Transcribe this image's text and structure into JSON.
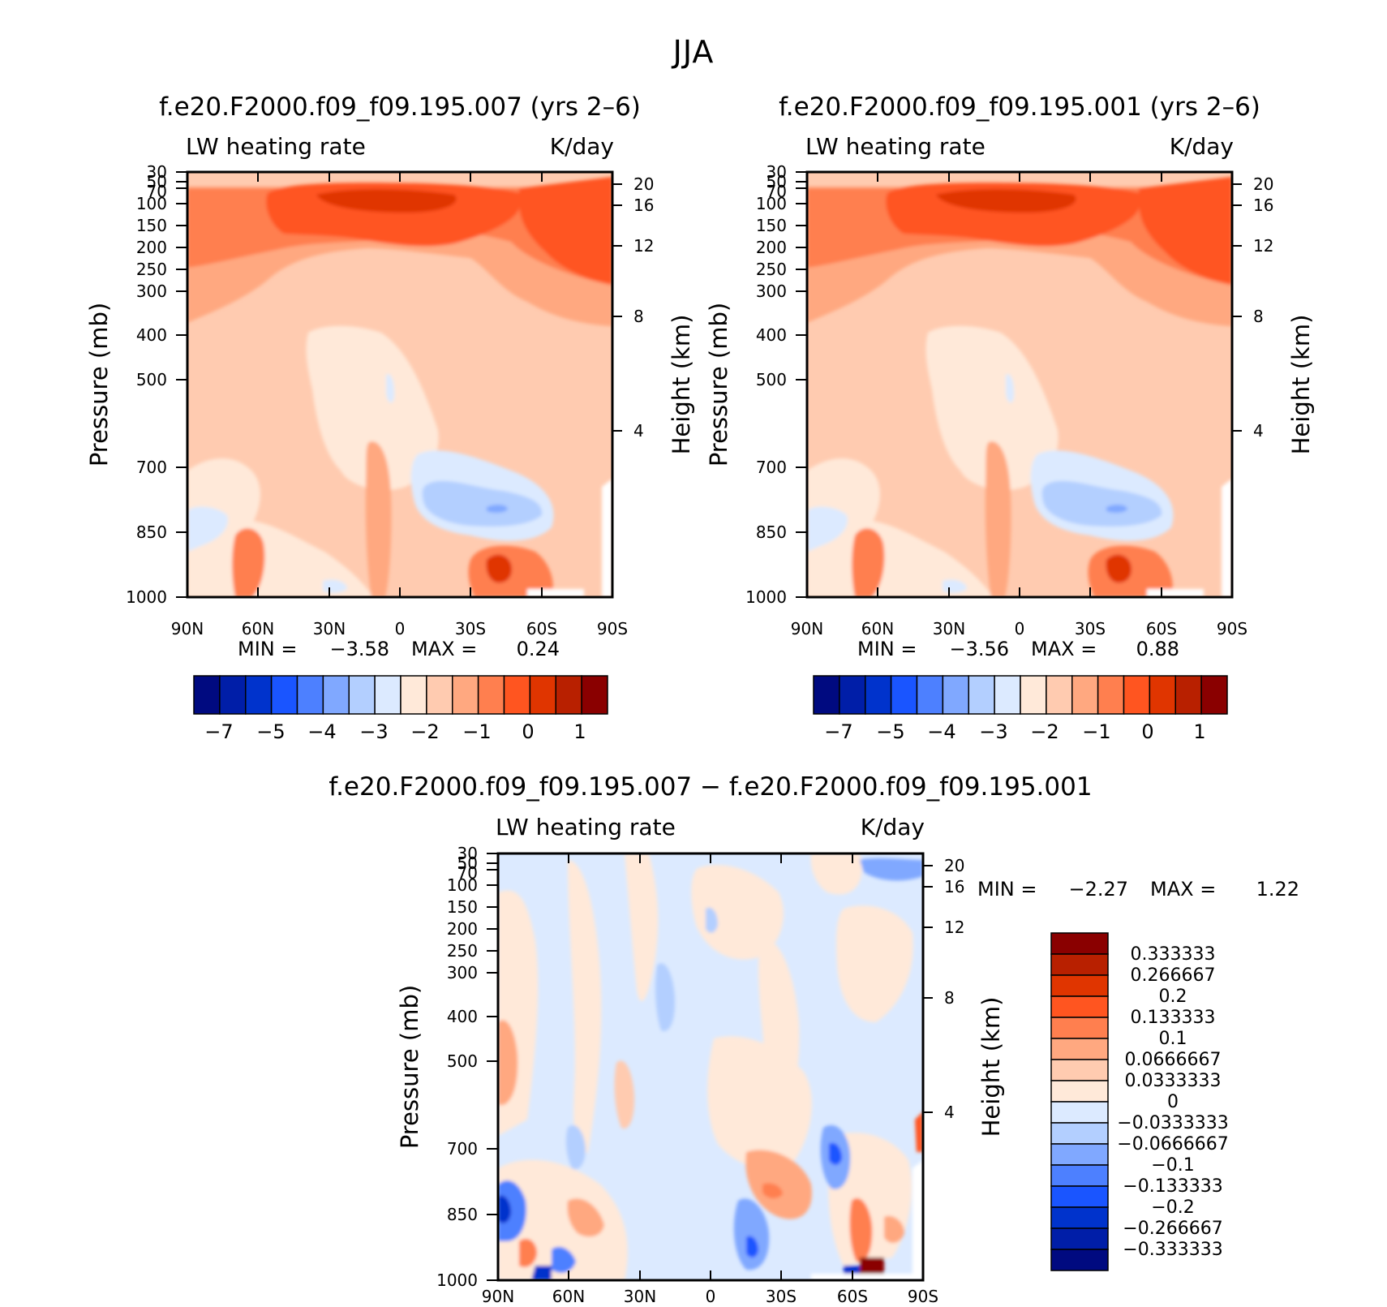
{
  "page_title": "JJA",
  "colors": {
    "colormap": [
      "#000a80",
      "#001ea8",
      "#0033cc",
      "#1a55ff",
      "#4d80ff",
      "#80a8ff",
      "#b3cfff",
      "#dceaff",
      "#ffe9d9",
      "#ffcbb0",
      "#ffa880",
      "#ff7f4f",
      "#ff5520",
      "#e03500",
      "#b82000",
      "#8a0000"
    ]
  },
  "chart_data": [
    {
      "type": "heatmap",
      "panel": "top-left",
      "title": "f.e20.F2000.f09_f09.195.007 (yrs 2–6)",
      "left_label": "LW heating rate",
      "right_label": "K/day",
      "xlabel": "",
      "ylabel": "Pressure (mb)",
      "y2label": "Height (km)",
      "x_ticks": [
        "90N",
        "60N",
        "30N",
        "0",
        "30S",
        "60S",
        "90S"
      ],
      "y_ticks": [
        "30",
        "50",
        "70",
        "100",
        "150",
        "200",
        "250",
        "300",
        "400",
        "500",
        "700",
        "850",
        "1000"
      ],
      "y2_ticks": [
        "20",
        "16",
        "12",
        "8",
        "4"
      ],
      "min_label": "MIN =",
      "min_value": "−3.58",
      "max_label": "MAX =",
      "max_value": "0.24",
      "colorbar_labels": [
        "−7",
        "−5",
        "−4",
        "−3",
        "−2",
        "−1",
        "0",
        "1"
      ]
    },
    {
      "type": "heatmap",
      "panel": "top-right",
      "title": "f.e20.F2000.f09_f09.195.001 (yrs 2–6)",
      "left_label": "LW heating rate",
      "right_label": "K/day",
      "xlabel": "",
      "ylabel": "Pressure (mb)",
      "y2label": "Height (km)",
      "x_ticks": [
        "90N",
        "60N",
        "30N",
        "0",
        "30S",
        "60S",
        "90S"
      ],
      "y_ticks": [
        "30",
        "50",
        "70",
        "100",
        "150",
        "200",
        "250",
        "300",
        "400",
        "500",
        "700",
        "850",
        "1000"
      ],
      "y2_ticks": [
        "20",
        "16",
        "12",
        "8",
        "4"
      ],
      "min_label": "MIN =",
      "min_value": "−3.56",
      "max_label": "MAX =",
      "max_value": "0.88",
      "colorbar_labels": [
        "−7",
        "−5",
        "−4",
        "−3",
        "−2",
        "−1",
        "0",
        "1"
      ]
    },
    {
      "type": "heatmap",
      "panel": "bottom",
      "title": "f.e20.F2000.f09_f09.195.007 − f.e20.F2000.f09_f09.195.001",
      "left_label": "LW heating rate",
      "right_label": "K/day",
      "xlabel": "",
      "ylabel": "Pressure (mb)",
      "y2label": "Height (km)",
      "x_ticks": [
        "90N",
        "60N",
        "30N",
        "0",
        "30S",
        "60S",
        "90S"
      ],
      "y_ticks": [
        "30",
        "50",
        "70",
        "100",
        "150",
        "200",
        "250",
        "300",
        "400",
        "500",
        "700",
        "850",
        "1000"
      ],
      "y2_ticks": [
        "20",
        "16",
        "12",
        "8",
        "4"
      ],
      "min_label": "MIN =",
      "min_value": "−2.27",
      "max_label": "MAX =",
      "max_value": "1.22",
      "colorbar_labels": [
        "0.333333",
        "0.266667",
        "0.2",
        "0.133333",
        "0.1",
        "0.0666667",
        "0.0333333",
        "0",
        "−0.0333333",
        "−0.0666667",
        "−0.1",
        "−0.133333",
        "−0.2",
        "−0.266667",
        "−0.333333"
      ]
    }
  ]
}
